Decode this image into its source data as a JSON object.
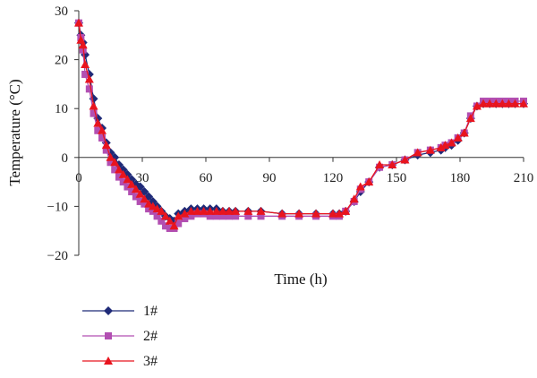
{
  "chart_data": {
    "type": "line",
    "xlabel": "Time (h)",
    "ylabel": "Temperature (°C)",
    "xlim": [
      0,
      210
    ],
    "ylim": [
      -20,
      30
    ],
    "x_ticks": [
      "0",
      "30",
      "60",
      "90",
      "120",
      "150",
      "180",
      "210"
    ],
    "y_ticks": [
      "30",
      "20",
      "10",
      "0",
      "−10",
      "−20"
    ],
    "x_tick_values": [
      0,
      30,
      60,
      90,
      120,
      150,
      180,
      210
    ],
    "y_tick_values": [
      30,
      20,
      10,
      0,
      -10,
      -20
    ],
    "grid": false,
    "legend_position": "bottom-left",
    "series": [
      {
        "name": "1#",
        "color": "#1f2a78",
        "marker": "diamond",
        "x": [
          0,
          1,
          2,
          3,
          5,
          7,
          9,
          11,
          13,
          15,
          17,
          19,
          21,
          23,
          25,
          27,
          29,
          31,
          33,
          35,
          37,
          39,
          41,
          43,
          45,
          47,
          50,
          53,
          56,
          59,
          62,
          65,
          68,
          71,
          74,
          80,
          86,
          96,
          104,
          112,
          120,
          123,
          126,
          130,
          133,
          137,
          142,
          148,
          154,
          160,
          166,
          171,
          173,
          176,
          179,
          182,
          185,
          188,
          191,
          194,
          197,
          200,
          203,
          206,
          210
        ],
        "y": [
          27.5,
          25,
          23.5,
          21,
          17,
          12,
          8,
          6,
          3,
          1,
          0,
          -1.5,
          -2.5,
          -3.5,
          -4.5,
          -5.5,
          -6,
          -7,
          -8,
          -9,
          -10,
          -11,
          -12,
          -12.5,
          -13,
          -11.5,
          -11,
          -10.5,
          -10.5,
          -10.5,
          -10.5,
          -10.5,
          -11,
          -11,
          -11,
          -11,
          -11,
          -11.5,
          -11.5,
          -11.5,
          -11.5,
          -11.5,
          -11,
          -9,
          -7,
          -5,
          -2,
          -1.5,
          -0.5,
          0.5,
          1,
          1.5,
          2,
          2.5,
          3.5,
          5,
          8,
          10.5,
          11,
          11,
          11,
          11,
          11,
          11,
          11
        ]
      },
      {
        "name": "2#",
        "color": "#b24fb2",
        "marker": "square",
        "x": [
          0,
          1,
          2,
          3,
          5,
          7,
          9,
          11,
          13,
          15,
          17,
          19,
          21,
          23,
          25,
          27,
          29,
          31,
          33,
          35,
          37,
          39,
          41,
          43,
          45,
          47,
          50,
          53,
          56,
          59,
          62,
          65,
          68,
          71,
          74,
          80,
          86,
          96,
          104,
          112,
          120,
          123,
          126,
          130,
          133,
          137,
          142,
          148,
          154,
          160,
          166,
          171,
          173,
          176,
          179,
          182,
          185,
          188,
          191,
          194,
          197,
          200,
          203,
          206,
          210
        ],
        "y": [
          27.5,
          24.5,
          22,
          17,
          14,
          9,
          5.5,
          4,
          1.5,
          -1,
          -2.5,
          -4,
          -5,
          -6,
          -7,
          -8,
          -9,
          -9.5,
          -10.5,
          -11,
          -12,
          -13,
          -14,
          -14.5,
          -14.5,
          -13.5,
          -12.5,
          -12,
          -11.5,
          -11.5,
          -12,
          -12,
          -12,
          -12,
          -12,
          -12,
          -12,
          -12,
          -12,
          -12,
          -12,
          -12,
          -11,
          -9,
          -6.5,
          -5,
          -2,
          -1.5,
          -0.5,
          1,
          1.5,
          2,
          2.5,
          3,
          4,
          5,
          8.5,
          10.5,
          11.5,
          11.5,
          11.5,
          11.5,
          11.5,
          11.5,
          11.5
        ]
      },
      {
        "name": "3#",
        "color": "#e8141e",
        "marker": "triangle",
        "x": [
          0,
          1,
          2,
          3,
          5,
          7,
          9,
          11,
          13,
          15,
          17,
          19,
          21,
          23,
          25,
          27,
          29,
          31,
          33,
          35,
          37,
          39,
          41,
          43,
          45,
          47,
          50,
          53,
          56,
          59,
          62,
          65,
          68,
          71,
          74,
          80,
          86,
          96,
          104,
          112,
          120,
          123,
          126,
          130,
          133,
          137,
          142,
          148,
          154,
          160,
          166,
          171,
          173,
          176,
          179,
          182,
          185,
          188,
          191,
          194,
          197,
          200,
          203,
          206,
          210
        ],
        "y": [
          27.5,
          24,
          23,
          19,
          16,
          10.5,
          7,
          5.5,
          2.5,
          0,
          -1,
          -2.5,
          -3.5,
          -4.5,
          -5.5,
          -6.5,
          -7.5,
          -8.5,
          -9.5,
          -10,
          -10.5,
          -11,
          -12,
          -13,
          -14,
          -12,
          -11.5,
          -11,
          -11,
          -11,
          -11,
          -11,
          -11,
          -11,
          -11,
          -11,
          -11,
          -11.5,
          -11.5,
          -11.5,
          -11.5,
          -11.5,
          -11,
          -8.5,
          -6,
          -5,
          -1.5,
          -1.5,
          -0.5,
          1,
          1.5,
          2,
          2.5,
          3,
          4,
          5,
          8,
          10.5,
          11,
          11,
          11,
          11,
          11,
          11,
          11
        ]
      }
    ]
  }
}
